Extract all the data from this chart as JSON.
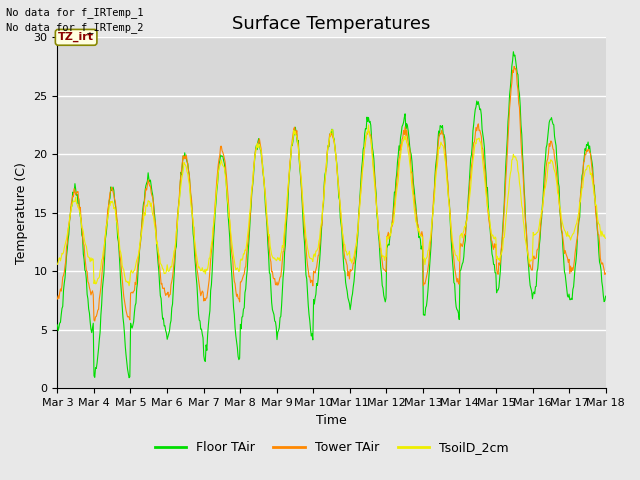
{
  "title": "Surface Temperatures",
  "xlabel": "Time",
  "ylabel": "Temperature (C)",
  "ylim": [
    0,
    30
  ],
  "xlim": [
    0,
    15
  ],
  "xtick_labels": [
    "Mar 3",
    "Mar 4",
    "Mar 5",
    "Mar 6",
    "Mar 7",
    "Mar 8",
    "Mar 9",
    "Mar 10",
    "Mar 11",
    "Mar 12",
    "Mar 13",
    "Mar 14",
    "Mar 15",
    "Mar 16",
    "Mar 17",
    "Mar 18"
  ],
  "xtick_positions": [
    0,
    1,
    2,
    3,
    4,
    5,
    6,
    7,
    8,
    9,
    10,
    11,
    12,
    13,
    14,
    15
  ],
  "ytick_labels": [
    "0",
    "5",
    "10",
    "15",
    "20",
    "25",
    "30"
  ],
  "ytick_positions": [
    0,
    5,
    10,
    15,
    20,
    25,
    30
  ],
  "line_floor_color": "#00dd00",
  "line_tower_color": "#ff8800",
  "line_soil_color": "#eeee00",
  "fig_bg_color": "#e8e8e8",
  "axes_bg_color": "#d8d8d8",
  "grid_color": "#c0c0c0",
  "no_data_text_1": "No data for f_IRTemp_1",
  "no_data_text_2": "No data for f_IRTemp_2",
  "annotation_text": "TZ_irt",
  "legend_floor": "Floor TAir",
  "legend_tower": "Tower TAir",
  "legend_soil": "TsoilD_2cm",
  "title_fontsize": 13,
  "axes_fontsize": 9,
  "tick_fontsize": 8
}
